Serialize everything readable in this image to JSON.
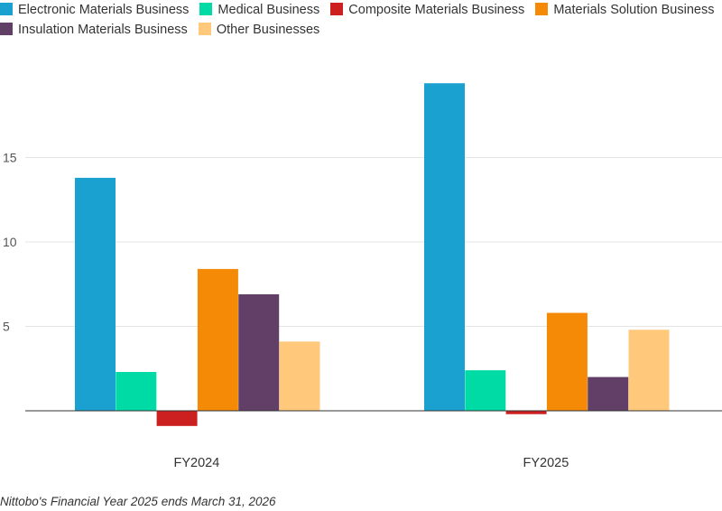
{
  "chart_data": {
    "type": "bar",
    "categories": [
      "FY2024",
      "FY2025"
    ],
    "series": [
      {
        "name": "Electronic Materials Business",
        "color": "#1aa1d0",
        "values": [
          13.8,
          19.4
        ]
      },
      {
        "name": "Medical Business",
        "color": "#00dba5",
        "values": [
          2.3,
          2.4
        ]
      },
      {
        "name": "Composite Materials Business",
        "color": "#cc2020",
        "values": [
          -0.9,
          -0.2
        ]
      },
      {
        "name": "Materials Solution Business",
        "color": "#f58a07",
        "values": [
          8.4,
          5.8
        ]
      },
      {
        "name": "Insulation Materials Business",
        "color": "#623f66",
        "values": [
          6.9,
          2.0
        ]
      },
      {
        "name": "Other Businesses",
        "color": "#ffc87a",
        "values": [
          4.1,
          4.8
        ]
      }
    ],
    "yticks": [
      "5",
      "10",
      "15"
    ],
    "ytick_values": [
      5,
      10,
      15
    ],
    "ylim": [
      -1,
      19.5
    ],
    "grid": true,
    "legend_position": "top"
  },
  "footnote": "Nittobo's Financial Year 2025 ends March 31, 2026"
}
